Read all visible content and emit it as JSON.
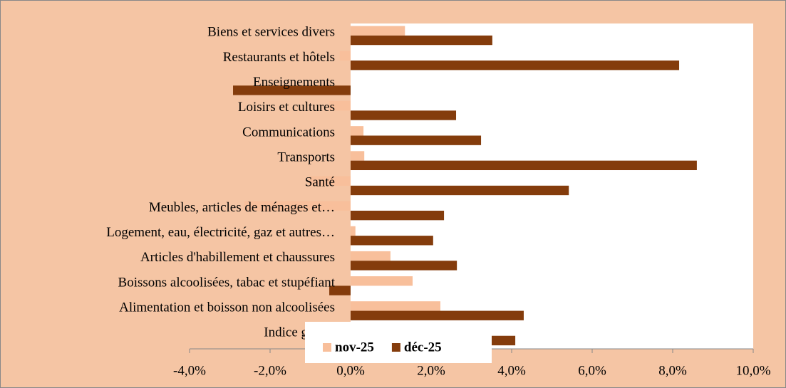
{
  "chart_data": {
    "type": "barh",
    "categories": [
      "Biens et services divers",
      "Restaurants et hôtels",
      "Enseignements",
      "Loisirs et cultures",
      "Communications",
      "Transports",
      "Santé",
      "Meubles, articles de ménages et…",
      "Logement, eau, électricité, gaz et autres…",
      "Articles d'habillement et chaussures",
      "Boissons alcoolisées, tabac et stupéfiant",
      "Alimentation et boisson non alcoolisées",
      "Indice global"
    ],
    "series": [
      {
        "name": "nov-25",
        "color": "#f8bf9b",
        "values": [
          1.35,
          -0.27,
          0.0,
          -0.53,
          0.32,
          0.34,
          -1.03,
          -2.64,
          0.12,
          0.99,
          1.54,
          2.23,
          1.01
        ]
      },
      {
        "name": "déc-25",
        "color": "#843c0c",
        "values": [
          3.52,
          8.16,
          -2.92,
          2.62,
          3.24,
          8.6,
          5.42,
          2.32,
          2.05,
          2.64,
          -0.53,
          4.3,
          4.09
        ]
      }
    ],
    "xlim": [
      -4,
      10
    ],
    "xticks": [
      {
        "value": -4,
        "label": "-4,0%"
      },
      {
        "value": -2,
        "label": "-2,0%"
      },
      {
        "value": 0,
        "label": "0,0%"
      },
      {
        "value": 2,
        "label": "2,0%"
      },
      {
        "value": 4,
        "label": "4,0%"
      },
      {
        "value": 6,
        "label": "6,0%"
      },
      {
        "value": 8,
        "label": "8,0%"
      },
      {
        "value": 10,
        "label": "10,0%"
      }
    ],
    "legend": "bottom"
  }
}
